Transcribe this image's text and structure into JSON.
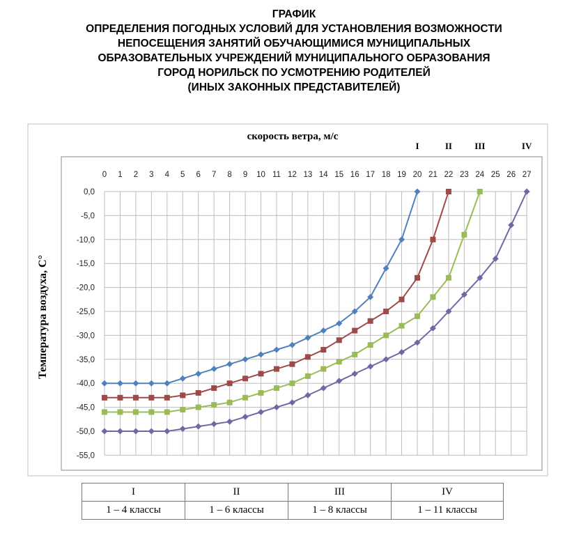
{
  "title_lines": [
    "ГРАФИК",
    "ОПРЕДЕЛЕНИЯ ПОГОДНЫХ УСЛОВИЙ ДЛЯ УСТАНОВЛЕНИЯ ВОЗМОЖНОСТИ",
    "НЕПОСЕЩЕНИЯ ЗАНЯТИЙ ОБУЧАЮЩИМИСЯ МУНИЦИПАЛЬНЫХ",
    "ОБРАЗОВАТЕЛЬНЫХ УЧРЕЖДЕНИЙ МУНИЦИПАЛЬНОГО ОБРАЗОВАНИЯ",
    "ГОРОД НОРИЛЬСК ПО УСМОТРЕНИЮ РОДИТЕЛЕЙ",
    "(ИНЫХ ЗАКОННЫХ ПРЕДСТАВИТЕЛЕЙ)"
  ],
  "legend_table": {
    "headers": [
      "I",
      "II",
      "III",
      "IV"
    ],
    "classes": [
      "1 – 4 классы",
      "1 – 6 классы",
      "1 – 8 классы",
      "1 – 11 классы"
    ]
  },
  "chart_data": {
    "type": "line",
    "xlabel": "скорость ветра, м/с",
    "ylabel": "Температура воздуха, С°",
    "x_axis_position": "top",
    "xlim": [
      0,
      27
    ],
    "ylim": [
      -55,
      0
    ],
    "x_ticks": [
      0,
      1,
      2,
      3,
      4,
      5,
      6,
      7,
      8,
      9,
      10,
      11,
      12,
      13,
      14,
      15,
      16,
      17,
      18,
      19,
      20,
      21,
      22,
      23,
      24,
      25,
      26,
      27
    ],
    "y_ticks": [
      "0,0",
      "-5,0",
      "-10,0",
      "-15,0",
      "-20,0",
      "-25,0",
      "-30,0",
      "-35,0",
      "-40,0",
      "-45,0",
      "-50,0",
      "-55,0"
    ],
    "y_tick_values": [
      0,
      -5,
      -10,
      -15,
      -20,
      -25,
      -30,
      -35,
      -40,
      -45,
      -50,
      -55
    ],
    "grid": true,
    "series": [
      {
        "name": "I",
        "color": "#4f81bd",
        "marker": "diamond",
        "x": [
          0,
          1,
          2,
          3,
          4,
          5,
          6,
          7,
          8,
          9,
          10,
          11,
          12,
          13,
          14,
          15,
          16,
          17,
          18,
          19,
          20
        ],
        "y": [
          -40,
          -40,
          -40,
          -40,
          -40,
          -39,
          -38,
          -37,
          -36,
          -35,
          -34,
          -33,
          -32,
          -30.5,
          -29,
          -27.5,
          -25,
          -22,
          -16,
          -10,
          0
        ]
      },
      {
        "name": "II",
        "color": "#9e4a48",
        "marker": "square",
        "x": [
          0,
          1,
          2,
          3,
          4,
          5,
          6,
          7,
          8,
          9,
          10,
          11,
          12,
          13,
          14,
          15,
          16,
          17,
          18,
          19,
          20,
          21,
          22
        ],
        "y": [
          -43,
          -43,
          -43,
          -43,
          -43,
          -42.5,
          -42,
          -41,
          -40,
          -39,
          -38,
          -37,
          -36,
          -34.5,
          -33,
          -31,
          -29,
          -27,
          -25,
          -22.5,
          -18,
          -10,
          0
        ]
      },
      {
        "name": "III",
        "color": "#9bbb59",
        "marker": "square",
        "x": [
          0,
          1,
          2,
          3,
          4,
          5,
          6,
          7,
          8,
          9,
          10,
          11,
          12,
          13,
          14,
          15,
          16,
          17,
          18,
          19,
          20,
          21,
          22,
          23,
          24
        ],
        "y": [
          -46,
          -46,
          -46,
          -46,
          -46,
          -45.5,
          -45,
          -44.5,
          -44,
          -43,
          -42,
          -41,
          -40,
          -38.5,
          -37,
          -35.5,
          -34,
          -32,
          -30,
          -28,
          -26,
          -22,
          -18,
          -9,
          0
        ]
      },
      {
        "name": "IV",
        "color": "#7565a5",
        "marker": "diamond",
        "x": [
          0,
          1,
          2,
          3,
          4,
          5,
          6,
          7,
          8,
          9,
          10,
          11,
          12,
          13,
          14,
          15,
          16,
          17,
          18,
          19,
          20,
          21,
          22,
          23,
          24,
          25,
          26,
          27
        ],
        "y": [
          -50,
          -50,
          -50,
          -50,
          -50,
          -49.5,
          -49,
          -48.5,
          -48,
          -47,
          -46,
          -45,
          -44,
          -42.5,
          -41,
          -39.5,
          -38,
          -36.5,
          -35,
          -33.5,
          -31.5,
          -28.5,
          -25,
          -21.5,
          -18,
          -14,
          -7,
          0
        ]
      }
    ],
    "series_labels_position": "top, above line ends"
  }
}
